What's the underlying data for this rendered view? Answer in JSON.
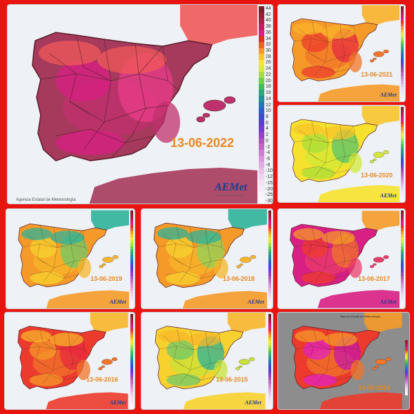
{
  "agency_text": "Agencia Estatal de Meteorología",
  "logo": {
    "text": "AEMet",
    "subtitle": "Agencia Estatal de Meteorología"
  },
  "legend_values": [
    "44",
    "42",
    "40",
    "38",
    "36",
    "34",
    "32",
    "30",
    "28",
    "26",
    "24",
    "22",
    "20",
    "18",
    "16",
    "14",
    "12",
    "10",
    "8",
    "6",
    "4",
    "2",
    "0",
    "-2",
    "-4",
    "-6",
    "-8",
    "-10",
    "-12",
    "-15",
    "-20",
    "-25",
    "-30"
  ],
  "legend_colors": [
    "#7a1f28",
    "#9b1e35",
    "#b81a4a",
    "#d21768",
    "#e31b8a",
    "#ec2a2a",
    "#f4601e",
    "#f89a1e",
    "#f8c81f",
    "#f5e629",
    "#d8eb2c",
    "#a9e036",
    "#6fd244",
    "#3fbd5a",
    "#2ba87a",
    "#20909a",
    "#2277b8",
    "#2d5ed0",
    "#3f47dc",
    "#5a3bdc",
    "#7638d6",
    "#9640c8",
    "#b052be",
    "#c266c6",
    "#cf7dd0",
    "#da95da",
    "#e3abe3",
    "#ebc1eb",
    "#f1d3f1",
    "#f5e0f5",
    "#f8eaf8",
    "#fbf2fb",
    "#fdf8fd"
  ],
  "maps": [
    {
      "id": "2022",
      "date": "13-06-2022",
      "palette": [
        "#a63a5c",
        "#c0306e",
        "#d81f83",
        "#ea3c8a",
        "#f05a5a"
      ]
    },
    {
      "id": "2021",
      "date": "13-06-2021",
      "palette": [
        "#f59a28",
        "#f2762a",
        "#ec3b2c",
        "#e8293f",
        "#f8b12a"
      ]
    },
    {
      "id": "2020",
      "date": "13-06-2020",
      "palette": [
        "#f6e22e",
        "#d3e836",
        "#a8de3a",
        "#58c36c",
        "#f7c42a"
      ]
    },
    {
      "id": "2019",
      "date": "13-06-2019",
      "palette": [
        "#f59a28",
        "#f7b52a",
        "#f7d12e",
        "#6fc86a",
        "#2eb29a"
      ]
    },
    {
      "id": "2018",
      "date": "13-06-2018",
      "palette": [
        "#f59a28",
        "#f7b52a",
        "#f7d12e",
        "#8fd25a",
        "#2eb29a"
      ]
    },
    {
      "id": "2017",
      "date": "13-06-2017",
      "palette": [
        "#d81f83",
        "#ea3c6a",
        "#ec3b2c",
        "#f2762a",
        "#f59a28"
      ]
    },
    {
      "id": "2016",
      "date": "13-06-2016",
      "palette": [
        "#ec3b2c",
        "#f2762a",
        "#f59a28",
        "#e8293f",
        "#f7b52a"
      ]
    },
    {
      "id": "2015",
      "date": "13-06-2015",
      "palette": [
        "#f7d12e",
        "#c8e238",
        "#6fc86a",
        "#2eb29a",
        "#f7b52a"
      ]
    },
    {
      "id": "2014",
      "date": "13-06-2014",
      "palette": [
        "#ec3b2c",
        "#f2762a",
        "#e323c0",
        "#c81aa8",
        "#f59a28"
      ]
    }
  ]
}
